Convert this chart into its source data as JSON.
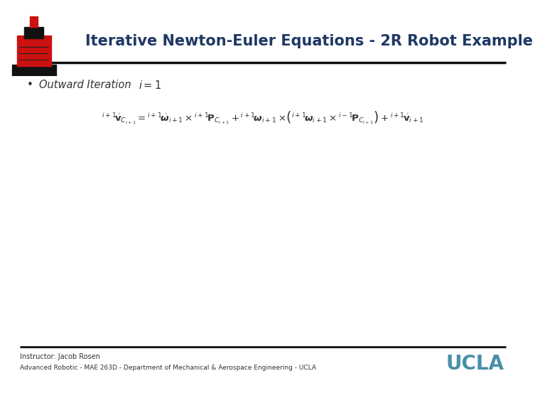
{
  "title": "Iterative Newton-Euler Equations - 2R Robot Example",
  "title_color": "#1F3864",
  "title_fontsize": 15,
  "footer_line1": "Instructor: Jacob Rosen",
  "footer_line2": "Advanced Robotic - MAE 263D - Department of Mechanical & Aerospace Engineering - UCLA",
  "ucla_text": "UCLA",
  "ucla_color": "#4A8FA8",
  "bg_color": "#FFFFFF",
  "header_line_color": "#111111",
  "footer_line_color": "#111111",
  "bullet_label": "Outward Iteration",
  "bullet_i_eq": "i = 1"
}
